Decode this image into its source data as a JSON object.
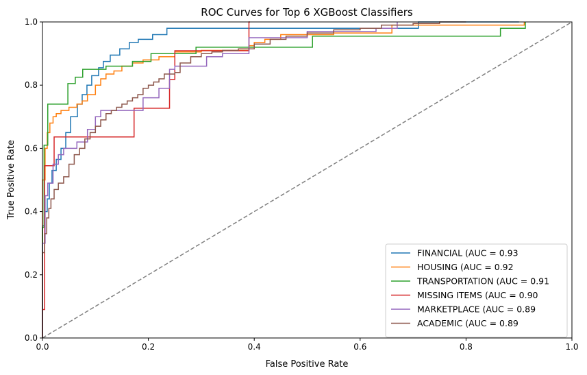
{
  "chart_data": {
    "type": "line",
    "title": "ROC Curves for Top 6 XGBoost Classifiers",
    "xlabel": "False Positive Rate",
    "ylabel": "True Positive Rate",
    "xlim": [
      0,
      1
    ],
    "ylim": [
      0,
      1
    ],
    "x_ticks": [
      "0.0",
      "0.2",
      "0.4",
      "0.6",
      "0.8",
      "1.0"
    ],
    "y_ticks": [
      "0.0",
      "0.2",
      "0.4",
      "0.6",
      "0.8",
      "1.0"
    ],
    "grid": false,
    "legend_position": "lower-right",
    "diagonal": {
      "x": [
        0,
        1
      ],
      "y": [
        0,
        1
      ],
      "color": "#808080",
      "style": "dashed"
    },
    "series": [
      {
        "name": "FINANCIAL (AUC = 0.93",
        "color": "#1f77b4",
        "x": [
          0,
          0,
          0.004,
          0.004,
          0.009,
          0.009,
          0.013,
          0.013,
          0.018,
          0.018,
          0.026,
          0.026,
          0.035,
          0.035,
          0.044,
          0.044,
          0.053,
          0.053,
          0.066,
          0.066,
          0.075,
          0.075,
          0.084,
          0.084,
          0.093,
          0.093,
          0.106,
          0.106,
          0.115,
          0.115,
          0.128,
          0.128,
          0.146,
          0.146,
          0.164,
          0.164,
          0.181,
          0.181,
          0.208,
          0.208,
          0.235,
          0.235,
          0.32,
          0.32,
          0.39,
          0.39,
          0.71,
          0.71,
          0.9
        ],
        "y": [
          0,
          0.355,
          0.355,
          0.4,
          0.4,
          0.44,
          0.44,
          0.49,
          0.49,
          0.53,
          0.53,
          0.565,
          0.565,
          0.6,
          0.6,
          0.65,
          0.65,
          0.7,
          0.7,
          0.74,
          0.74,
          0.77,
          0.77,
          0.8,
          0.8,
          0.83,
          0.83,
          0.855,
          0.855,
          0.875,
          0.875,
          0.895,
          0.895,
          0.915,
          0.915,
          0.935,
          0.935,
          0.945,
          0.945,
          0.96,
          0.96,
          0.98,
          0.98,
          0.98,
          0.98,
          0.98,
          0.98,
          1.0,
          1.0
        ]
      },
      {
        "name": "HOUSING (AUC = 0.92",
        "color": "#ff7f0e",
        "x": [
          0,
          0,
          0.005,
          0.005,
          0.009,
          0.009,
          0.014,
          0.014,
          0.02,
          0.02,
          0.026,
          0.026,
          0.035,
          0.035,
          0.05,
          0.05,
          0.065,
          0.065,
          0.075,
          0.075,
          0.085,
          0.085,
          0.1,
          0.1,
          0.11,
          0.11,
          0.12,
          0.12,
          0.135,
          0.135,
          0.15,
          0.15,
          0.17,
          0.17,
          0.19,
          0.19,
          0.22,
          0.22,
          0.25,
          0.25,
          0.3,
          0.3,
          0.39,
          0.39,
          0.4,
          0.4,
          0.42,
          0.42,
          0.45,
          0.45,
          0.55,
          0.55,
          0.66,
          0.66,
          0.85,
          0.85,
          0.91,
          0.91
        ],
        "y": [
          0,
          0.5,
          0.5,
          0.6,
          0.6,
          0.65,
          0.65,
          0.68,
          0.68,
          0.7,
          0.7,
          0.71,
          0.71,
          0.72,
          0.72,
          0.73,
          0.73,
          0.74,
          0.74,
          0.75,
          0.75,
          0.77,
          0.77,
          0.8,
          0.8,
          0.82,
          0.82,
          0.835,
          0.835,
          0.845,
          0.845,
          0.86,
          0.86,
          0.87,
          0.87,
          0.88,
          0.88,
          0.89,
          0.89,
          0.905,
          0.905,
          0.91,
          0.91,
          0.925,
          0.925,
          0.935,
          0.935,
          0.945,
          0.945,
          0.96,
          0.96,
          0.965,
          0.965,
          0.99,
          0.99,
          0.99,
          0.99,
          1.0
        ]
      },
      {
        "name": "TRANSPORTATION (AUC = 0.91",
        "color": "#2ca02c",
        "x": [
          0,
          0,
          0.003,
          0.003,
          0.01,
          0.01,
          0.048,
          0.048,
          0.062,
          0.062,
          0.076,
          0.076,
          0.12,
          0.12,
          0.17,
          0.17,
          0.205,
          0.205,
          0.29,
          0.29,
          0.51,
          0.51,
          0.865,
          0.865,
          0.912,
          0.912
        ],
        "y": [
          0,
          0.35,
          0.35,
          0.61,
          0.61,
          0.74,
          0.74,
          0.805,
          0.805,
          0.825,
          0.825,
          0.85,
          0.85,
          0.86,
          0.86,
          0.875,
          0.875,
          0.9,
          0.9,
          0.92,
          0.92,
          0.955,
          0.955,
          0.98,
          0.98,
          1.0
        ]
      },
      {
        "name": "MISSING ITEMS (AUC = 0.90",
        "color": "#d62728",
        "x": [
          0,
          0,
          0.004,
          0.004,
          0.022,
          0.022,
          0.173,
          0.173,
          0.24,
          0.24,
          0.25,
          0.25,
          0.39,
          0.39,
          0.392
        ],
        "y": [
          0,
          0.09,
          0.09,
          0.545,
          0.545,
          0.636,
          0.636,
          0.727,
          0.727,
          0.818,
          0.818,
          0.909,
          0.909,
          1.0,
          1.0
        ]
      },
      {
        "name": "MARKETPLACE (AUC = 0.89",
        "color": "#9467bd",
        "x": [
          0,
          0,
          0.005,
          0.005,
          0.01,
          0.01,
          0.02,
          0.02,
          0.03,
          0.03,
          0.04,
          0.04,
          0.065,
          0.065,
          0.085,
          0.085,
          0.1,
          0.1,
          0.11,
          0.11,
          0.19,
          0.19,
          0.22,
          0.22,
          0.24,
          0.24,
          0.25,
          0.25,
          0.31,
          0.31,
          0.34,
          0.34,
          0.39,
          0.39,
          0.5,
          0.5,
          0.63,
          0.63,
          0.67,
          0.67
        ],
        "y": [
          0,
          0.3,
          0.3,
          0.45,
          0.45,
          0.49,
          0.49,
          0.55,
          0.55,
          0.58,
          0.58,
          0.6,
          0.6,
          0.62,
          0.62,
          0.66,
          0.66,
          0.7,
          0.7,
          0.72,
          0.72,
          0.76,
          0.76,
          0.79,
          0.79,
          0.85,
          0.85,
          0.86,
          0.86,
          0.89,
          0.89,
          0.9,
          0.9,
          0.95,
          0.95,
          0.97,
          0.97,
          0.98,
          0.98,
          1.0
        ]
      },
      {
        "name": "ACADEMIC (AUC = 0.89",
        "color": "#8c564b",
        "x": [
          0,
          0,
          0.004,
          0.004,
          0.008,
          0.008,
          0.012,
          0.012,
          0.016,
          0.016,
          0.022,
          0.022,
          0.03,
          0.03,
          0.04,
          0.04,
          0.05,
          0.05,
          0.06,
          0.06,
          0.07,
          0.07,
          0.08,
          0.08,
          0.09,
          0.09,
          0.1,
          0.1,
          0.11,
          0.11,
          0.12,
          0.12,
          0.13,
          0.13,
          0.14,
          0.14,
          0.15,
          0.15,
          0.16,
          0.16,
          0.17,
          0.17,
          0.18,
          0.18,
          0.19,
          0.19,
          0.2,
          0.2,
          0.21,
          0.21,
          0.22,
          0.22,
          0.23,
          0.23,
          0.25,
          0.25,
          0.26,
          0.26,
          0.28,
          0.28,
          0.3,
          0.3,
          0.32,
          0.32,
          0.34,
          0.34,
          0.37,
          0.37,
          0.4,
          0.4,
          0.43,
          0.43,
          0.46,
          0.46,
          0.5,
          0.5,
          0.55,
          0.55,
          0.6,
          0.6,
          0.64,
          0.64,
          0.7,
          0.7,
          0.75,
          0.75,
          0.8,
          0.8
        ],
        "y": [
          0,
          0.27,
          0.27,
          0.33,
          0.33,
          0.38,
          0.38,
          0.41,
          0.41,
          0.44,
          0.44,
          0.47,
          0.47,
          0.49,
          0.49,
          0.51,
          0.51,
          0.55,
          0.55,
          0.58,
          0.58,
          0.6,
          0.6,
          0.63,
          0.63,
          0.65,
          0.65,
          0.67,
          0.67,
          0.69,
          0.69,
          0.71,
          0.71,
          0.72,
          0.72,
          0.73,
          0.73,
          0.74,
          0.74,
          0.75,
          0.75,
          0.76,
          0.76,
          0.77,
          0.77,
          0.79,
          0.79,
          0.8,
          0.8,
          0.81,
          0.81,
          0.82,
          0.82,
          0.835,
          0.835,
          0.84,
          0.84,
          0.87,
          0.87,
          0.89,
          0.89,
          0.9,
          0.9,
          0.905,
          0.905,
          0.91,
          0.91,
          0.915,
          0.915,
          0.93,
          0.93,
          0.945,
          0.945,
          0.955,
          0.955,
          0.965,
          0.965,
          0.975,
          0.975,
          0.98,
          0.98,
          0.99,
          0.99,
          0.995,
          0.995,
          1.0,
          1.0,
          1.0
        ]
      }
    ]
  }
}
